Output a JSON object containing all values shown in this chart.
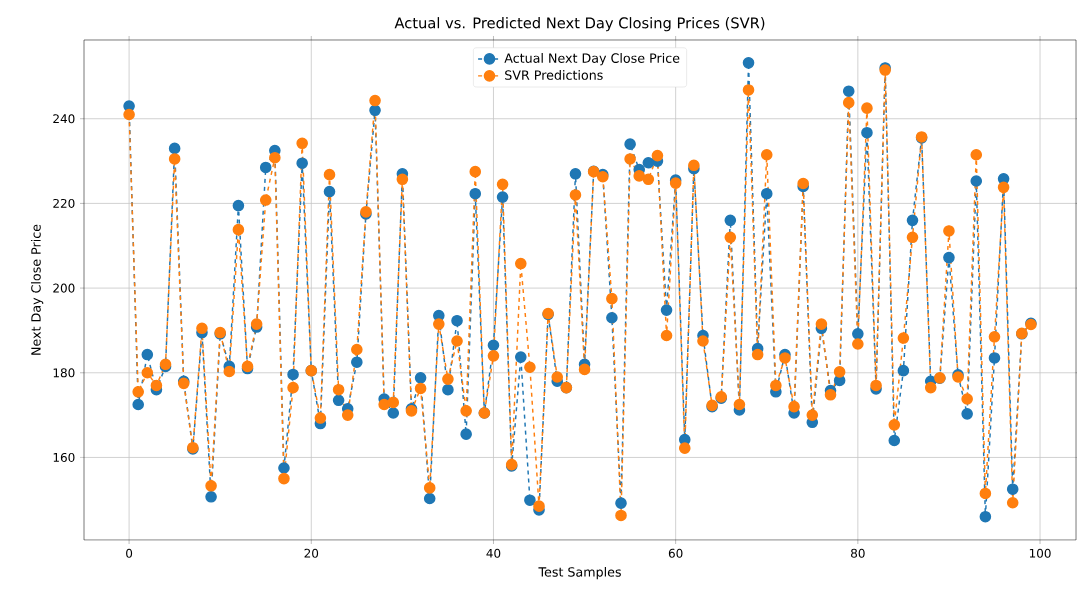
{
  "chart_data": {
    "type": "line",
    "title": "Actual vs. Predicted Next Day Closing Prices (SVR)",
    "xlabel": "Test Samples",
    "ylabel": "Next Day Close Price",
    "x": [
      0,
      1,
      2,
      3,
      4,
      5,
      6,
      7,
      8,
      9,
      10,
      11,
      12,
      13,
      14,
      15,
      16,
      17,
      18,
      19,
      20,
      21,
      22,
      23,
      24,
      25,
      26,
      27,
      28,
      29,
      30,
      31,
      32,
      33,
      34,
      35,
      36,
      37,
      38,
      39,
      40,
      41,
      42,
      43,
      44,
      45,
      46,
      47,
      48,
      49,
      50,
      51,
      52,
      53,
      54,
      55,
      56,
      57,
      58,
      59,
      60,
      61,
      62,
      63,
      64,
      65,
      66,
      67,
      68,
      69,
      70,
      71,
      72,
      73,
      74,
      75,
      76,
      77,
      78,
      79,
      80,
      81,
      82,
      83,
      84,
      85,
      86,
      87,
      88,
      89,
      90,
      91,
      92,
      93,
      94,
      95,
      96,
      97,
      98,
      99
    ],
    "series": [
      {
        "name": "Actual Next Day Close Price",
        "color": "#1f77b4",
        "values": [
          243,
          172.5,
          184.3,
          176,
          181.5,
          233,
          178,
          162,
          189.5,
          150.7,
          189.2,
          181.5,
          219.5,
          181,
          190.8,
          228.5,
          232.5,
          157.5,
          179.6,
          229.5,
          180.5,
          168,
          222.8,
          173.5,
          171.5,
          182.5,
          217.5,
          242,
          173.8,
          170.5,
          227,
          171.5,
          178.8,
          150.3,
          193.5,
          176,
          192.3,
          165.5,
          222.3,
          170.5,
          186.5,
          221.5,
          158,
          183.7,
          149.9,
          147.6,
          193.8,
          178,
          176.5,
          227,
          182,
          227.6,
          226.8,
          193,
          149.2,
          234,
          228,
          229.6,
          230,
          194.8,
          225.5,
          164.2,
          228.2,
          188.8,
          172,
          174,
          216,
          171.2,
          253.2,
          185.7,
          222.3,
          175.5,
          184.3,
          170.5,
          224,
          168.3,
          190.5,
          175.8,
          178.2,
          246.5,
          189.2,
          236.7,
          176.2,
          252,
          164,
          180.5,
          216,
          235.5,
          178,
          178.7,
          207.2,
          179.5,
          170.3,
          225.3,
          146,
          183.5,
          225.8,
          152.5,
          189.2,
          191.7
        ]
      },
      {
        "name": "SVR Predictions",
        "color": "#ff7f0e",
        "values": [
          241,
          175.5,
          180,
          177,
          182,
          230.5,
          177.5,
          162.3,
          190.5,
          153.3,
          189.5,
          180.3,
          213.8,
          181.5,
          191.5,
          220.8,
          230.8,
          155,
          176.5,
          234.2,
          180.5,
          169.3,
          226.8,
          176,
          170,
          185.5,
          218,
          244.3,
          172.5,
          173,
          225.7,
          171,
          176.3,
          152.8,
          191.5,
          178.5,
          187.5,
          171,
          227.5,
          170.5,
          184,
          224.5,
          158.3,
          205.8,
          181.3,
          148.5,
          194,
          179,
          176.5,
          222,
          180.8,
          227.5,
          226.3,
          197.5,
          146.3,
          230.5,
          226.5,
          225.7,
          231.3,
          188.8,
          224.8,
          162.2,
          229,
          187.5,
          172.3,
          174.3,
          212,
          172.5,
          246.8,
          184.3,
          231.5,
          177,
          183.5,
          172,
          224.7,
          170,
          191.5,
          174.8,
          180.2,
          243.8,
          186.8,
          242.5,
          177,
          251.5,
          167.7,
          188.2,
          212,
          235.7,
          176.5,
          178.8,
          213.5,
          179,
          173.8,
          231.5,
          151.5,
          188.5,
          223.8,
          149.3,
          189.3,
          191.4
        ]
      }
    ],
    "xlim": [
      -4.95,
      103.95
    ],
    "ylim": [
      140.5,
      258.6
    ],
    "xticks": [
      0,
      20,
      40,
      60,
      80,
      100
    ],
    "yticks": [
      160,
      180,
      200,
      220,
      240
    ],
    "grid": true,
    "legend": "top",
    "marker": "circle",
    "line_style": "dashed"
  }
}
